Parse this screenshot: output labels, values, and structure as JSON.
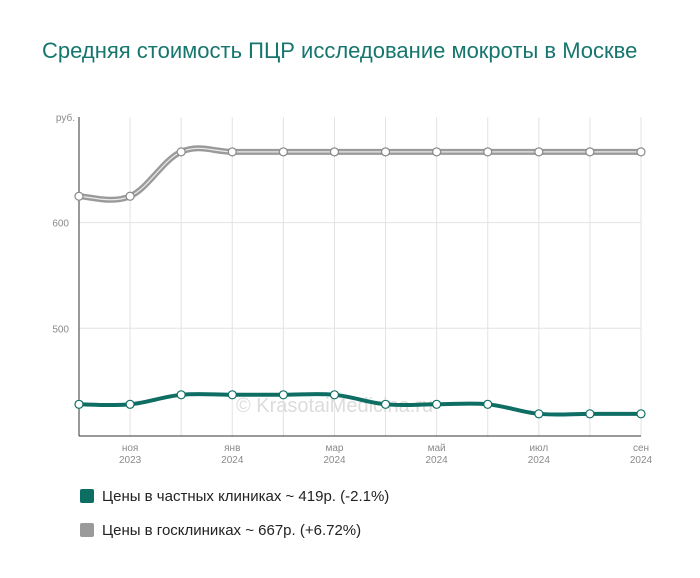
{
  "title": "Средняя стоимость ПЦР исследование мокроты в Москве",
  "watermark": "© KrasotaiMedicina.ru",
  "colors": {
    "private": "#0e6e64",
    "public": "#9a9a9a",
    "title": "#16766e"
  },
  "chart_data": {
    "type": "line",
    "y_unit_label": "руб.",
    "y_ticks": [
      500,
      600
    ],
    "ylim": [
      398,
      700
    ],
    "x_tick_labels": [
      {
        "month": "ноя",
        "year": "2023"
      },
      {
        "month": "янв",
        "year": "2024"
      },
      {
        "month": "мар",
        "year": "2024"
      },
      {
        "month": "май",
        "year": "2024"
      },
      {
        "month": "июл",
        "year": "2024"
      },
      {
        "month": "сен",
        "year": "2024"
      }
    ],
    "grid": true,
    "series": [
      {
        "name": "Цены в госклиниках ~ 667р. (+6.72%)",
        "color": "#9a9a9a",
        "values": [
          625,
          625,
          667,
          667,
          667,
          667,
          667,
          667,
          667,
          667,
          667,
          667
        ]
      },
      {
        "name": "Цены в частных клиниках ~ 419р. (-2.1%)",
        "color": "#0e6e64",
        "values": [
          428,
          428,
          437,
          437,
          437,
          437,
          428,
          428,
          428,
          419,
          419,
          419
        ]
      }
    ]
  },
  "legend": [
    {
      "label": "Цены в частных клиниках ~ 419р. (-2.1%)",
      "color": "#0e6e64"
    },
    {
      "label": "Цены в госклиниках ~ 667р. (+6.72%)",
      "color": "#9a9a9a"
    }
  ]
}
